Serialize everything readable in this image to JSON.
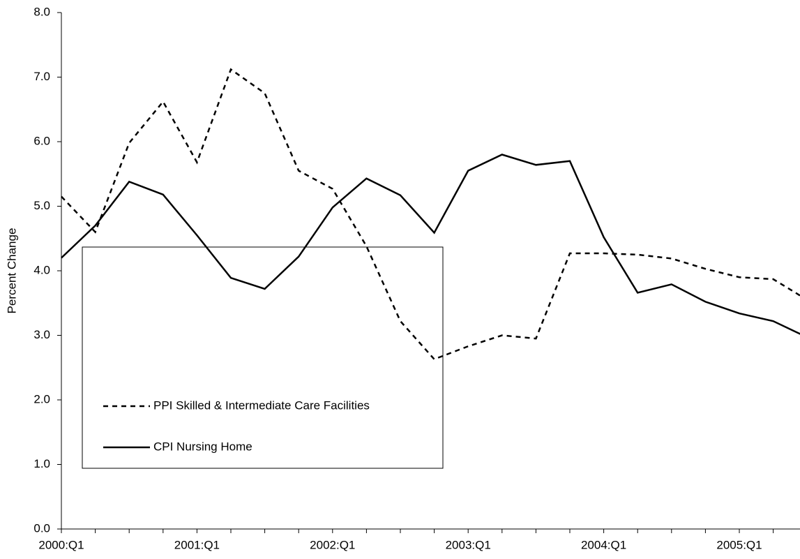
{
  "chart_data": {
    "type": "line",
    "y_label": "Percent Change",
    "categories": [
      "2000:Q1",
      null,
      null,
      null,
      "2001:Q1",
      null,
      null,
      null,
      "2002:Q1",
      null,
      null,
      null,
      "2003:Q1",
      null,
      null,
      null,
      "2004:Q1",
      null,
      null,
      null,
      "2005:Q1",
      null,
      null
    ],
    "series": [
      {
        "name": "PPI Skilled & Intermediate Care Facilities",
        "color": "#000000",
        "dash": true,
        "values": [
          5.15,
          4.6,
          5.98,
          6.62,
          5.68,
          7.12,
          6.75,
          5.55,
          5.27,
          4.38,
          3.22,
          2.63,
          2.83,
          3.0,
          2.95,
          4.27,
          4.27,
          4.25,
          4.19,
          4.03,
          3.9,
          3.87,
          3.55
        ]
      },
      {
        "name": "CPI Nursing Home",
        "color": "#000000",
        "dash": false,
        "values": [
          4.2,
          4.7,
          5.38,
          5.18,
          4.55,
          3.89,
          3.72,
          4.22,
          4.98,
          5.43,
          5.17,
          4.59,
          5.55,
          5.8,
          5.64,
          5.7,
          4.52,
          3.66,
          3.79,
          3.52,
          3.34,
          3.22,
          2.97
        ]
      }
    ],
    "ylim": [
      0,
      8
    ],
    "yticks": [
      {
        "value": 0,
        "label": "0.0"
      },
      {
        "value": 1,
        "label": "1.0"
      },
      {
        "value": 2,
        "label": "2.0"
      },
      {
        "value": 3,
        "label": "3.0"
      },
      {
        "value": 4,
        "label": "4.0"
      },
      {
        "value": 5,
        "label": "5.0"
      },
      {
        "value": 6,
        "label": "6.0"
      },
      {
        "value": 7,
        "label": "7.0"
      },
      {
        "value": 8,
        "label": "8.0"
      }
    ],
    "grid": false
  }
}
